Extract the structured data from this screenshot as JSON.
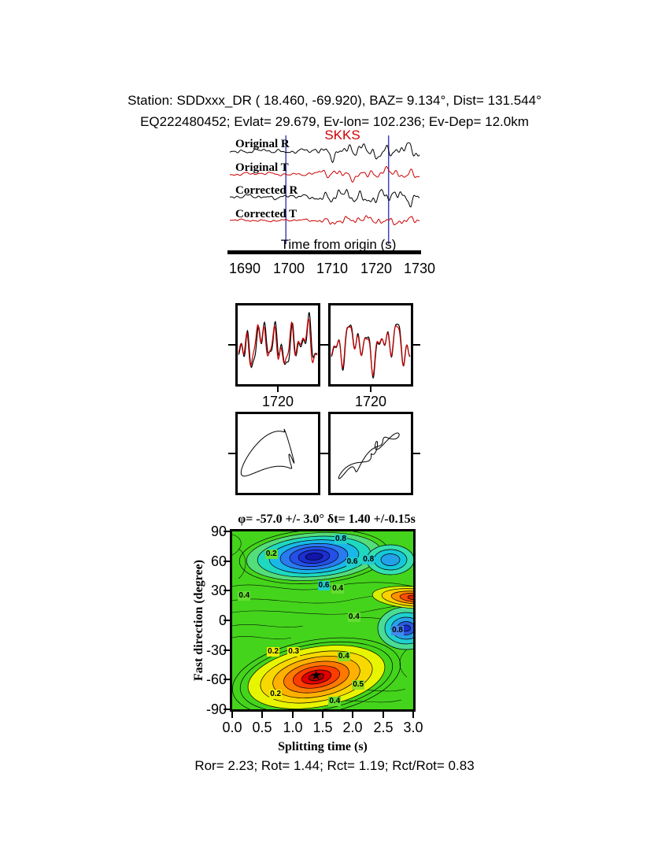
{
  "header": {
    "line1": "Station: SDDxxx_DR (  18.460,  -69.920), BAZ=   9.134°, Dist=  131.544°",
    "line2": "EQ222480452; Evlat=  29.679, Ev-lon= 102.236; Ev-Dep= 12.0km"
  },
  "phase_label": "SKKS",
  "colors": {
    "trace_radial": "#000000",
    "trace_transverse": "#cc0000",
    "window_line": "#4444bb",
    "phase_label": "#cc0000"
  },
  "waveform_panel": {
    "labels": [
      "Original R",
      "Original T",
      "Corrected R",
      "Corrected T"
    ],
    "xlabel": "Time from origin (s)",
    "xticks": [
      "1690",
      "1700",
      "1710",
      "1720",
      "1730"
    ]
  },
  "zoom_panels": {
    "left_label": "1720",
    "right_label": "1720"
  },
  "surface": {
    "title": "φ= -57.0 +/- 3.0° δt= 1.40 +/-0.15s",
    "xlabel": "Splitting time (s)",
    "ylabel": "Fast direction (degree)",
    "xticks": [
      "0.0",
      "0.5",
      "1.0",
      "1.5",
      "2.0",
      "2.5",
      "3.0"
    ],
    "yticks": [
      "90",
      "60",
      "30",
      "0",
      "-30",
      "-60",
      "-90"
    ]
  },
  "results_line": "Ror= 2.23; Rot= 1.44; Rct= 1.19; Rct/Rot= 0.83",
  "results": {
    "Ror": 2.23,
    "Rot": 1.44,
    "Rct": 1.19,
    "Rct_over_Rot": 0.83
  },
  "chart_data": [
    {
      "type": "line",
      "panel": "waveforms",
      "xlabel": "Time from origin (s)",
      "xlim": [
        1687,
        1733
      ],
      "xticks": [
        1690,
        1700,
        1710,
        1720,
        1730
      ],
      "x_window_markers": [
        1700.6,
        1725.5
      ],
      "series": [
        {
          "name": "Original R",
          "color": "#000000",
          "synth": [
            [
              4,
              3.5,
              0.5
            ],
            [
              9,
              4,
              2.1
            ],
            [
              16,
              3.5,
              4.0
            ],
            [
              26,
              2.5,
              1.2
            ],
            [
              40,
              1.5,
              3.3
            ]
          ]
        },
        {
          "name": "Original T",
          "color": "#cc0000",
          "synth": [
            [
              3,
              2.5,
              1.7
            ],
            [
              8,
              3,
              0.4
            ],
            [
              15,
              2.5,
              2.9
            ],
            [
              24,
              2,
              5.1
            ],
            [
              37,
              1.2,
              1.9
            ]
          ]
        },
        {
          "name": "Corrected R",
          "color": "#000000",
          "synth": [
            [
              4,
              3.5,
              2.3
            ],
            [
              10,
              4,
              5.0
            ],
            [
              17,
              3.2,
              0.8
            ],
            [
              28,
              2.3,
              3.6
            ],
            [
              43,
              1.4,
              1.1
            ]
          ]
        },
        {
          "name": "Corrected T",
          "color": "#cc0000",
          "synth": [
            [
              3,
              1.8,
              4.2
            ],
            [
              9,
              2.2,
              1.5
            ],
            [
              18,
              1.8,
              3.8
            ],
            [
              29,
              1.4,
              0.2
            ],
            [
              45,
              0.9,
              2.6
            ]
          ]
        }
      ]
    },
    {
      "type": "line",
      "panel": "zoom-left",
      "x_center_label": 1720,
      "series": [
        {
          "name": "R",
          "color": "#000000",
          "synth": [
            [
              2,
              10,
              0.3
            ],
            [
              5,
              14,
              2.0
            ],
            [
              9,
              12,
              4.1
            ],
            [
              14,
              8,
              1.0
            ]
          ]
        },
        {
          "name": "T",
          "color": "#cc0000",
          "synth": [
            [
              2,
              9,
              0.8
            ],
            [
              5,
              13,
              2.5
            ],
            [
              9,
              11,
              4.6
            ],
            [
              14,
              7,
              1.5
            ]
          ]
        }
      ]
    },
    {
      "type": "line",
      "panel": "zoom-right",
      "x_center_label": 1720,
      "series": [
        {
          "name": "R",
          "color": "#000000",
          "synth": [
            [
              2,
              11,
              1.2
            ],
            [
              5,
              13,
              3.4
            ],
            [
              8,
              12,
              0.2
            ],
            [
              13,
              7,
              2.2
            ]
          ]
        },
        {
          "name": "T",
          "color": "#cc0000",
          "synth": [
            [
              2,
              10,
              1.35
            ],
            [
              5,
              12,
              3.55
            ],
            [
              8,
              11,
              0.35
            ],
            [
              13,
              6.5,
              2.35
            ]
          ]
        }
      ]
    },
    {
      "type": "particle-motion",
      "panel": "pm-original",
      "x_synth": [
        [
          1,
          26,
          0.0
        ],
        [
          2,
          13,
          1.3
        ],
        [
          3,
          8,
          2.6
        ]
      ],
      "y_synth": [
        [
          1,
          24,
          1.7
        ],
        [
          2,
          12,
          4.1
        ],
        [
          4,
          7,
          0.8
        ]
      ]
    },
    {
      "type": "particle-motion",
      "panel": "pm-corrected",
      "x_synth": [
        [
          1,
          27,
          0.3
        ],
        [
          2,
          8,
          1.1
        ],
        [
          5,
          5,
          2.1
        ],
        [
          3,
          6,
          4.4
        ]
      ],
      "y_synth": [
        [
          1,
          22,
          3.44
        ],
        [
          2,
          6,
          4.25
        ],
        [
          5,
          4,
          5.25
        ],
        [
          7,
          4,
          1.6
        ]
      ]
    },
    {
      "type": "contour",
      "panel": "error-surface",
      "title": "φ= -57.0 +/- 3.0° δt= 1.40 +/-0.15s",
      "xlabel": "Splitting time (s)",
      "ylabel": "Fast direction (degree)",
      "xlim": [
        0,
        3
      ],
      "ylim": [
        -90,
        90
      ],
      "xticks": [
        0.0,
        0.5,
        1.0,
        1.5,
        2.0,
        2.5,
        3.0
      ],
      "yticks": [
        90,
        60,
        30,
        0,
        -30,
        -60,
        -90
      ],
      "best_fit": {
        "phi_deg": -57.0,
        "phi_err_deg": 3.0,
        "dt_s": 1.4,
        "dt_err_s": 0.15
      },
      "star": {
        "dt_s": 1.4,
        "phi_deg": -57
      },
      "contour_labels": [
        {
          "v": "0.2",
          "t": 0.65,
          "phi": 67,
          "chip": "#66dd33"
        },
        {
          "v": "0.8",
          "t": 1.8,
          "phi": 82,
          "chip": "#22cccc"
        },
        {
          "v": "0.6",
          "t": 1.99,
          "phi": 59,
          "chip": "#22cccc"
        },
        {
          "v": "0.8",
          "t": 2.26,
          "phi": 61,
          "chip": "#22cccc"
        },
        {
          "v": "0.4",
          "t": 0.2,
          "phi": 25,
          "chip": "#66dd33"
        },
        {
          "v": "0.6",
          "t": 1.52,
          "phi": 35,
          "chip": "#22cccc"
        },
        {
          "v": "0.4",
          "t": 1.75,
          "phi": 32,
          "chip": "#66dd33"
        },
        {
          "v": "0.4",
          "t": 2.02,
          "phi": 3,
          "chip": "#66dd33"
        },
        {
          "v": "0.8",
          "t": 2.74,
          "phi": -10,
          "chip": "#4488ee"
        },
        {
          "v": "0.2",
          "t": 0.68,
          "phi": -32,
          "chip": "#eeee00"
        },
        {
          "v": "0.3",
          "t": 1.02,
          "phi": -32,
          "chip": "#eeee00"
        },
        {
          "v": "0.4",
          "t": 1.85,
          "phi": -37,
          "chip": "#88dd22"
        },
        {
          "v": "0.2",
          "t": 0.72,
          "phi": -75,
          "chip": "#eeee00"
        },
        {
          "v": "0.5",
          "t": 2.09,
          "phi": -65,
          "chip": "#99dd22"
        },
        {
          "v": "0.4",
          "t": 1.7,
          "phi": -82,
          "chip": "#66dd33"
        }
      ]
    }
  ]
}
